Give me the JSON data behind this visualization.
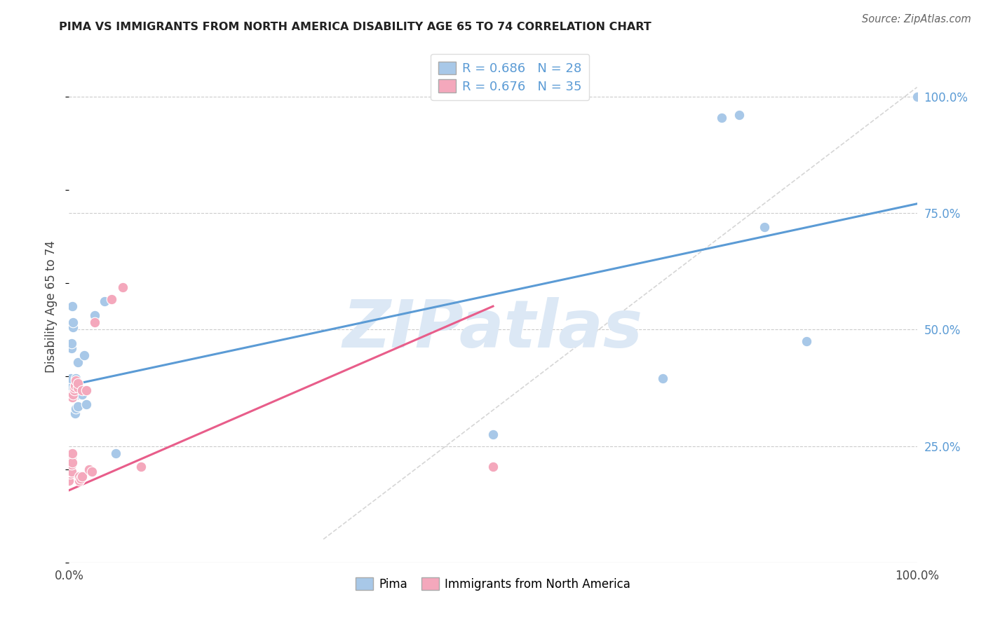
{
  "title": "PIMA VS IMMIGRANTS FROM NORTH AMERICA DISABILITY AGE 65 TO 74 CORRELATION CHART",
  "source": "Source: ZipAtlas.com",
  "ylabel": "Disability Age 65 to 74",
  "legend_blue_label": "Pima",
  "legend_pink_label": "Immigrants from North America",
  "blue_R": "R = 0.686",
  "blue_N": "N = 28",
  "pink_R": "R = 0.676",
  "pink_N": "N = 35",
  "blue_color": "#a8c8e8",
  "pink_color": "#f4a8bc",
  "blue_line_color": "#5b9bd5",
  "pink_line_color": "#e85d8a",
  "diagonal_color": "#cccccc",
  "watermark_color": "#dce8f5",
  "ytick_color": "#5b9bd5",
  "ytick_labels": [
    "25.0%",
    "50.0%",
    "75.0%",
    "100.0%"
  ],
  "ytick_values": [
    0.25,
    0.5,
    0.75,
    1.0
  ],
  "blue_points": [
    [
      0.001,
      0.375
    ],
    [
      0.002,
      0.375
    ],
    [
      0.002,
      0.395
    ],
    [
      0.003,
      0.46
    ],
    [
      0.003,
      0.47
    ],
    [
      0.004,
      0.55
    ],
    [
      0.005,
      0.505
    ],
    [
      0.005,
      0.515
    ],
    [
      0.007,
      0.32
    ],
    [
      0.008,
      0.33
    ],
    [
      0.008,
      0.395
    ],
    [
      0.01,
      0.335
    ],
    [
      0.01,
      0.36
    ],
    [
      0.01,
      0.43
    ],
    [
      0.013,
      0.37
    ],
    [
      0.015,
      0.36
    ],
    [
      0.018,
      0.445
    ],
    [
      0.02,
      0.34
    ],
    [
      0.03,
      0.53
    ],
    [
      0.042,
      0.56
    ],
    [
      0.055,
      0.235
    ],
    [
      0.5,
      0.275
    ],
    [
      0.7,
      0.395
    ],
    [
      0.77,
      0.955
    ],
    [
      0.79,
      0.96
    ],
    [
      0.82,
      0.72
    ],
    [
      0.87,
      0.475
    ],
    [
      1.0,
      1.0
    ]
  ],
  "pink_points": [
    [
      0.0,
      0.175
    ],
    [
      0.001,
      0.19
    ],
    [
      0.001,
      0.195
    ],
    [
      0.001,
      0.215
    ],
    [
      0.002,
      0.21
    ],
    [
      0.002,
      0.215
    ],
    [
      0.002,
      0.225
    ],
    [
      0.002,
      0.235
    ],
    [
      0.003,
      0.195
    ],
    [
      0.003,
      0.21
    ],
    [
      0.003,
      0.225
    ],
    [
      0.003,
      0.36
    ],
    [
      0.004,
      0.215
    ],
    [
      0.004,
      0.235
    ],
    [
      0.004,
      0.355
    ],
    [
      0.005,
      0.36
    ],
    [
      0.006,
      0.37
    ],
    [
      0.006,
      0.375
    ],
    [
      0.007,
      0.38
    ],
    [
      0.008,
      0.39
    ],
    [
      0.01,
      0.375
    ],
    [
      0.01,
      0.385
    ],
    [
      0.012,
      0.175
    ],
    [
      0.012,
      0.185
    ],
    [
      0.014,
      0.18
    ],
    [
      0.015,
      0.185
    ],
    [
      0.015,
      0.37
    ],
    [
      0.02,
      0.37
    ],
    [
      0.024,
      0.2
    ],
    [
      0.027,
      0.195
    ],
    [
      0.03,
      0.515
    ],
    [
      0.05,
      0.565
    ],
    [
      0.063,
      0.59
    ],
    [
      0.085,
      0.205
    ],
    [
      0.5,
      0.205
    ]
  ],
  "xlim": [
    0.0,
    1.0
  ],
  "ylim": [
    0.0,
    1.1
  ],
  "blue_line_x": [
    0.0,
    1.0
  ],
  "blue_line_y": [
    0.38,
    0.77
  ],
  "pink_line_x": [
    0.0,
    0.5
  ],
  "pink_line_y": [
    0.155,
    0.55
  ],
  "diag_line_x": [
    0.3,
    1.0
  ],
  "diag_line_y": [
    0.05,
    1.02
  ]
}
